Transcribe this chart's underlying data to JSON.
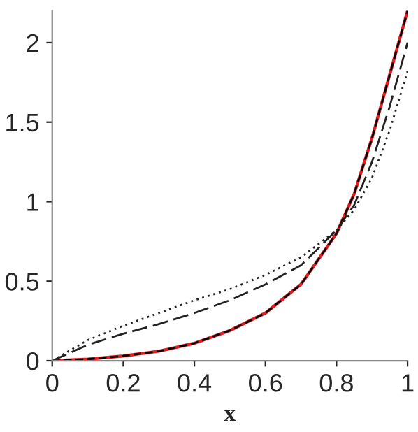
{
  "chart_data": {
    "type": "line",
    "xlabel": "x",
    "x": [
      0,
      0.1,
      0.2,
      0.3,
      0.4,
      0.5,
      0.6,
      0.7,
      0.8,
      0.85,
      0.9,
      0.95,
      1
    ],
    "series": [
      {
        "color": "#e02020",
        "line_style": "solid",
        "values": [
          0,
          0.01,
          0.03,
          0.06,
          0.11,
          0.19,
          0.3,
          0.48,
          0.8,
          1.05,
          1.4,
          1.8,
          2.2
        ]
      },
      {
        "color": "#000000",
        "line_style": "dashed",
        "values": [
          0,
          0.01,
          0.03,
          0.06,
          0.11,
          0.19,
          0.3,
          0.48,
          0.8,
          1.05,
          1.4,
          1.8,
          2.2
        ]
      },
      {
        "color": "#222222",
        "line_style": "longdash",
        "values": [
          0,
          0.1,
          0.17,
          0.23,
          0.3,
          0.38,
          0.48,
          0.6,
          0.82,
          0.98,
          1.25,
          1.6,
          2.0
        ]
      },
      {
        "color": "#222222",
        "line_style": "dotted",
        "values": [
          0,
          0.13,
          0.22,
          0.3,
          0.38,
          0.45,
          0.54,
          0.65,
          0.82,
          0.95,
          1.15,
          1.45,
          1.82
        ]
      }
    ],
    "xlim": [
      0,
      1
    ],
    "ylim": [
      0,
      2.2
    ],
    "xticks": [
      0,
      0.2,
      0.4,
      0.6,
      0.8,
      1
    ],
    "yticks": [
      0,
      0.5,
      1,
      1.5,
      2
    ],
    "grid": false,
    "legend": false
  }
}
